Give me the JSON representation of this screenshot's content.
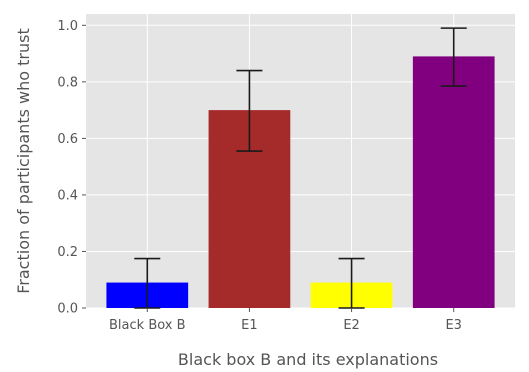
{
  "chart_data": {
    "type": "bar",
    "title": "",
    "xlabel": "Black box B and its explanations",
    "ylabel": "Fraction of participants who trust",
    "categories": [
      "Black Box B",
      "E1",
      "E2",
      "E3"
    ],
    "values": [
      0.09,
      0.7,
      0.09,
      0.89
    ],
    "error_low": [
      0.0,
      0.555,
      0.0,
      0.785
    ],
    "error_high": [
      0.175,
      0.84,
      0.175,
      0.99
    ],
    "colors": [
      "#0000ff",
      "#a52a2a",
      "#ffff00",
      "#800080"
    ],
    "ylim": [
      0,
      1.04
    ],
    "yticks": [
      "0.0",
      "0.2",
      "0.4",
      "0.6",
      "0.8",
      "1.0"
    ],
    "grid": true,
    "style": "ggplot",
    "background_color": "#e5e5e5",
    "grid_color": "#ffffff"
  }
}
